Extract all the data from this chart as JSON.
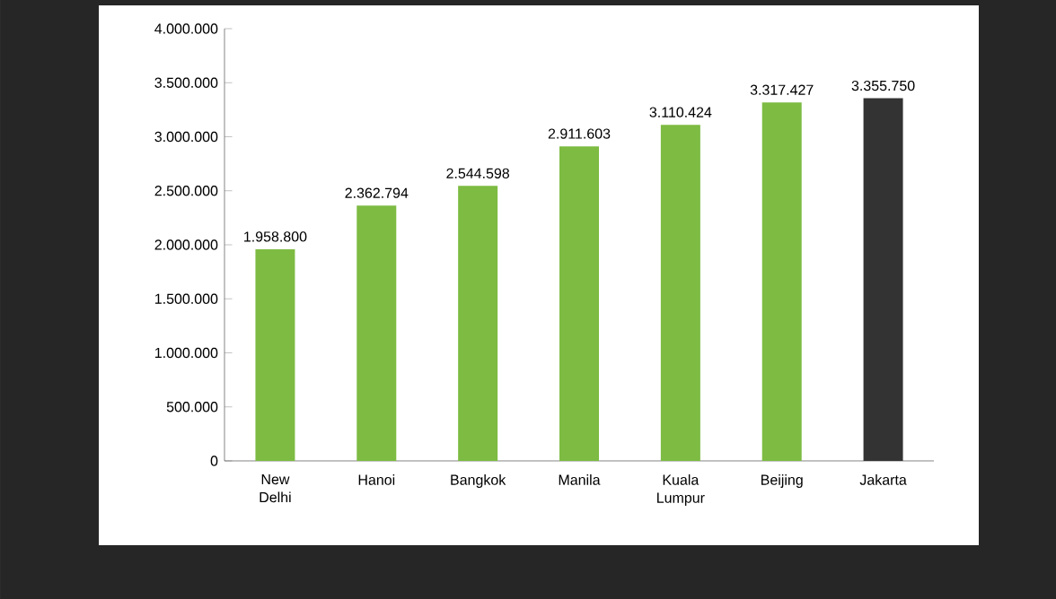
{
  "chart_data": {
    "type": "bar",
    "categories": [
      "New Delhi",
      "Hanoi",
      "Bangkok",
      "Manila",
      "Kuala Lumpur",
      "Beijing",
      "Jakarta"
    ],
    "values": [
      1958800,
      2362794,
      2544598,
      2911603,
      3110424,
      3317427,
      3355750
    ],
    "value_labels": [
      "1.958.800",
      "2.362.794",
      "2.544.598",
      "2.911.603",
      "3.110.424",
      "3.317.427",
      "3.355.750"
    ],
    "colors": [
      "#7dbb42",
      "#7dbb42",
      "#7dbb42",
      "#7dbb42",
      "#7dbb42",
      "#7dbb42",
      "#333333"
    ],
    "ylim": [
      0,
      4000000
    ],
    "yticks": [
      {
        "value": 0,
        "label": "0"
      },
      {
        "value": 500000,
        "label": "500.000"
      },
      {
        "value": 1000000,
        "label": "1.000.000"
      },
      {
        "value": 1500000,
        "label": "1.500.000"
      },
      {
        "value": 2000000,
        "label": "2.000.000"
      },
      {
        "value": 2500000,
        "label": "2.500.000"
      },
      {
        "value": 3000000,
        "label": "3.000.000"
      },
      {
        "value": 3500000,
        "label": "3.500.000"
      },
      {
        "value": 4000000,
        "label": "4.000.000"
      }
    ],
    "grid": false
  }
}
